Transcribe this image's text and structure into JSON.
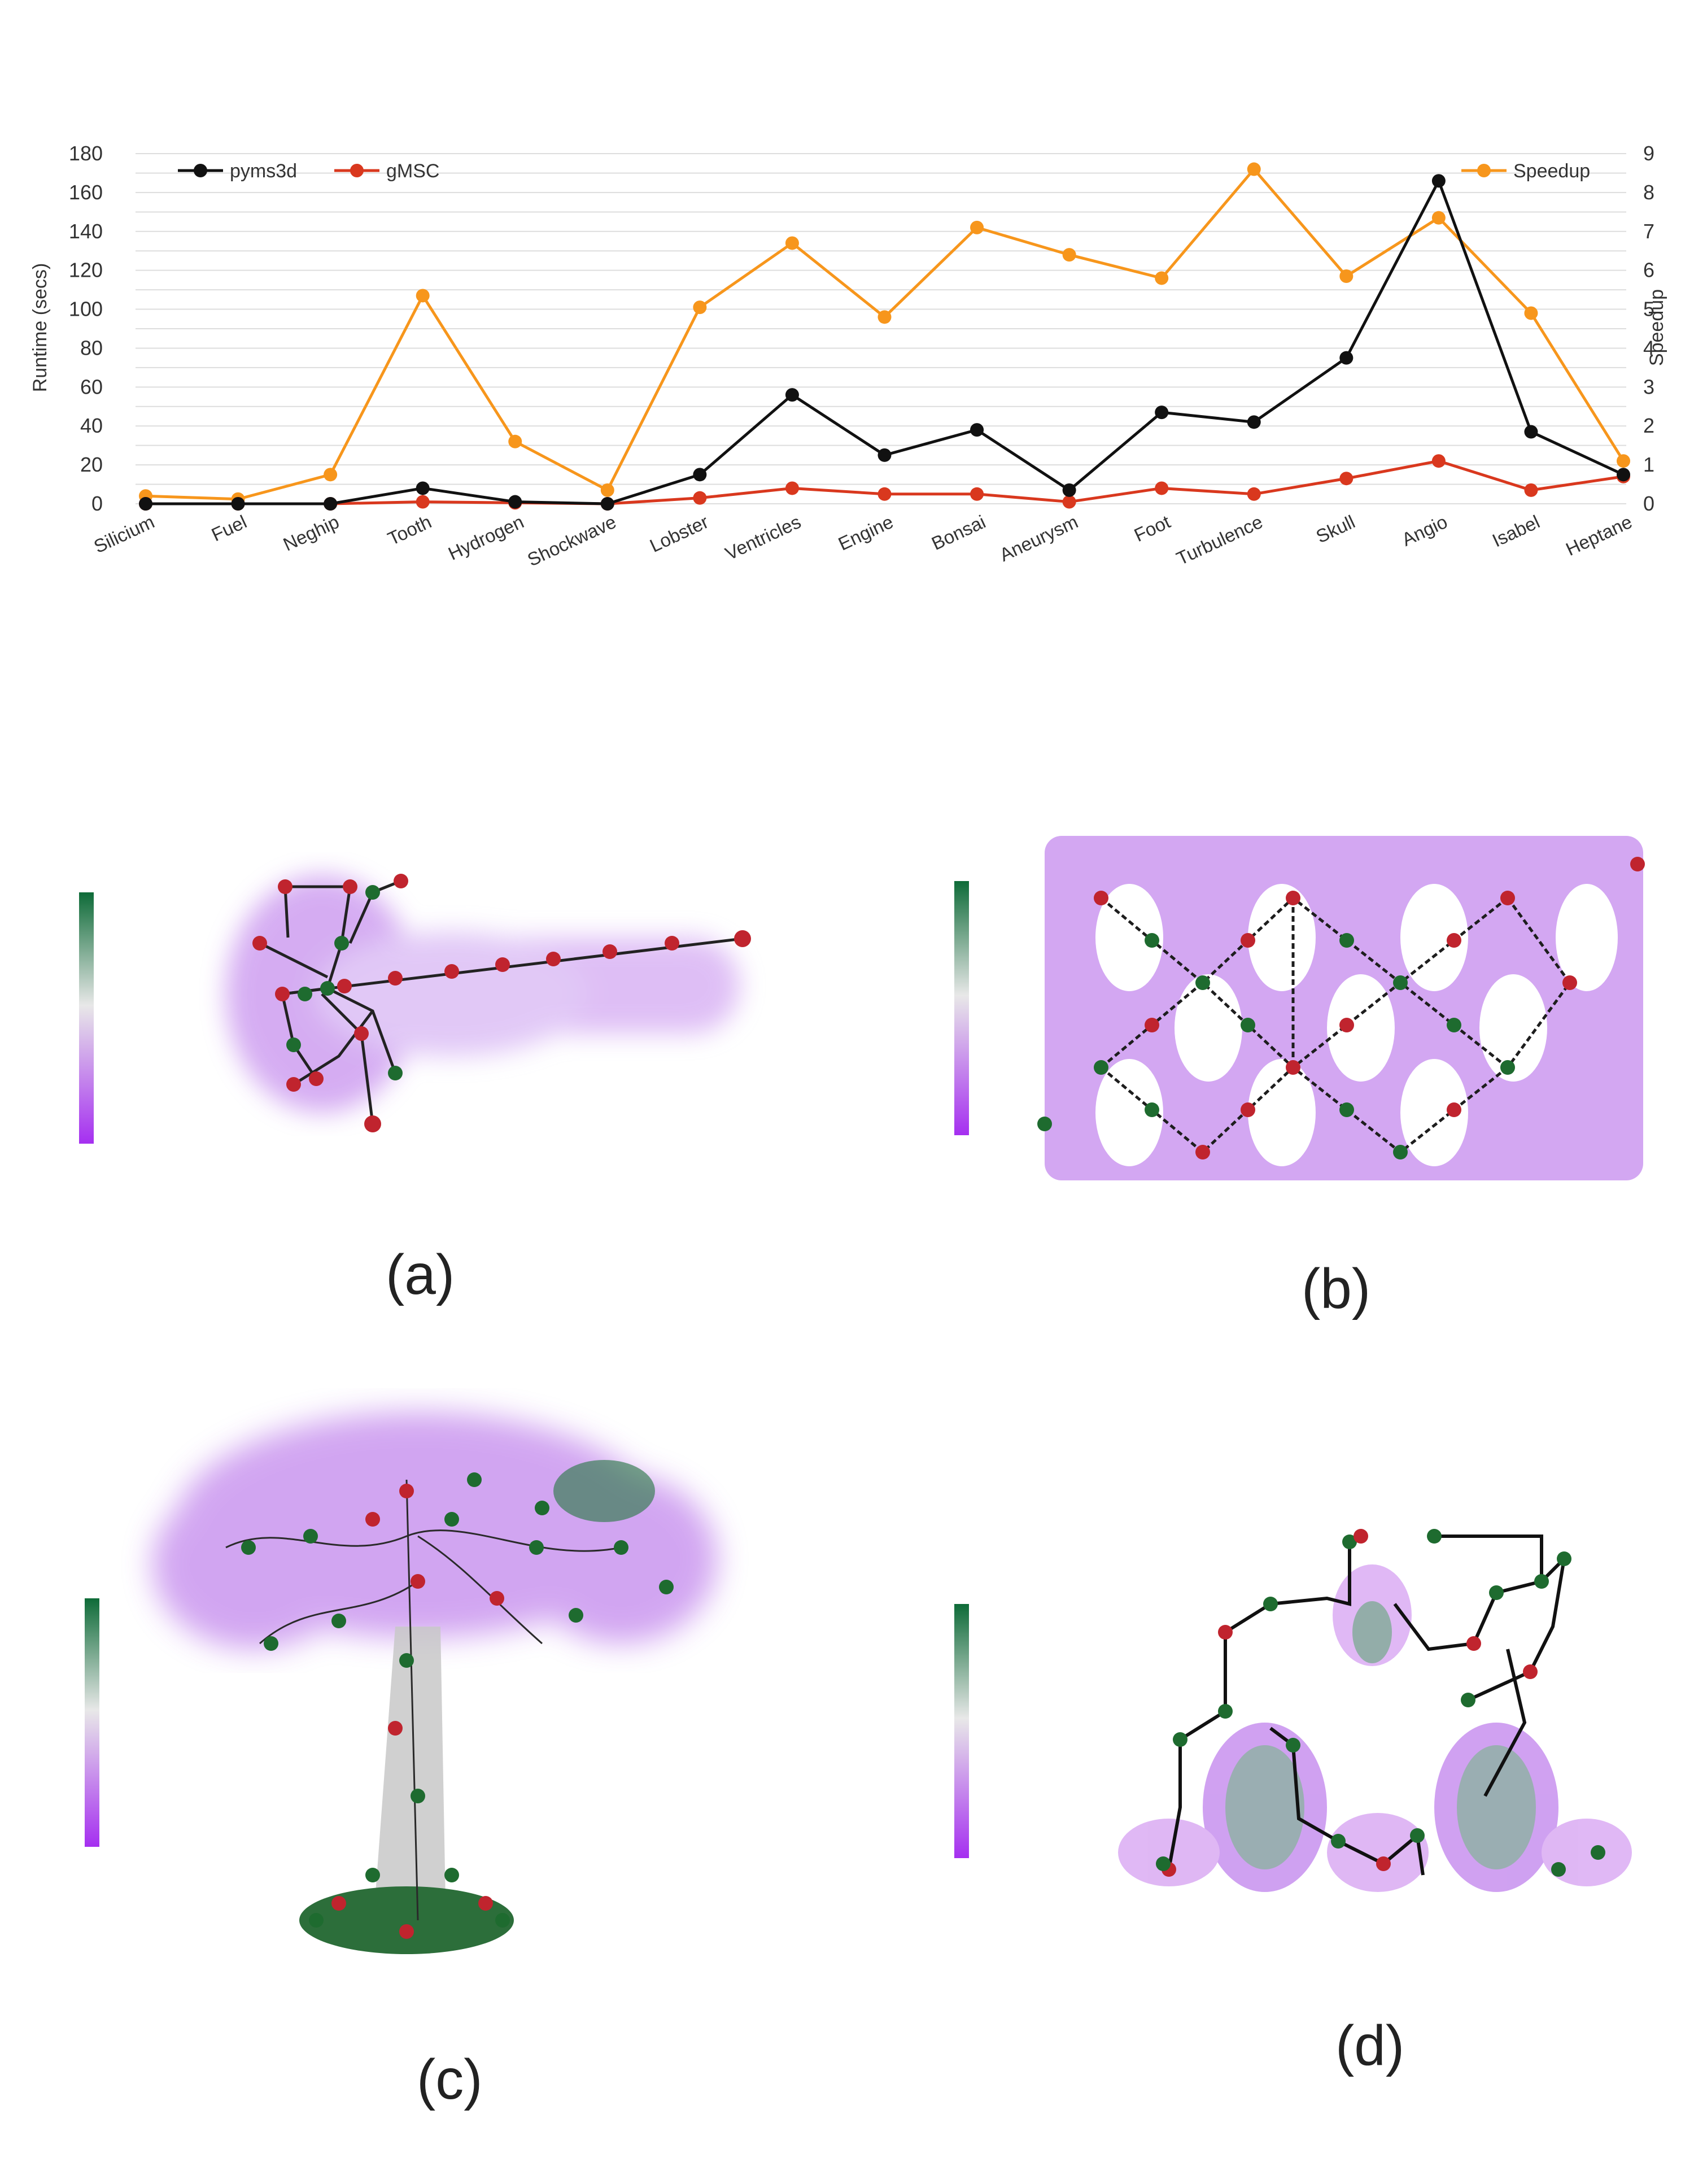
{
  "chart_data": {
    "type": "line",
    "categories": [
      "Silicium",
      "Fuel",
      "Neghip",
      "Tooth",
      "Hydrogen",
      "Shockwave",
      "Lobster",
      "Ventricles",
      "Engine",
      "Bonsai",
      "Aneurysm",
      "Foot",
      "Turbulence",
      "Skull",
      "Angio",
      "Isabel",
      "Heptane"
    ],
    "y_left": {
      "label": "Runtime (secs)",
      "ylim": [
        0,
        180
      ],
      "ticks": [
        0,
        20,
        40,
        60,
        80,
        100,
        120,
        140,
        160,
        180
      ]
    },
    "y_right": {
      "label": "Speedup",
      "ylim": [
        0,
        9
      ],
      "ticks": [
        0,
        1,
        2,
        3,
        4,
        5,
        6,
        7,
        8,
        9
      ]
    },
    "series": [
      {
        "name": "pyms3d",
        "axis": "left",
        "color": "#111111",
        "values": [
          0,
          0,
          0,
          8,
          1,
          0,
          15,
          56,
          25,
          38,
          7,
          47,
          42,
          75,
          166,
          37,
          15
        ]
      },
      {
        "name": "gMSC",
        "axis": "left",
        "color": "#d9381e",
        "values": [
          0,
          0,
          0,
          1,
          0.5,
          0,
          3,
          8,
          5,
          5,
          1,
          8,
          5,
          13,
          22,
          7,
          14
        ]
      },
      {
        "name": "Speedup",
        "axis": "right",
        "color": "#f7961c",
        "values": [
          0.2,
          0.12,
          0.75,
          5.35,
          1.6,
          0.35,
          5.05,
          6.7,
          4.8,
          7.1,
          6.4,
          5.8,
          8.6,
          5.85,
          7.35,
          4.9,
          1.1
        ]
      }
    ],
    "legend_left": "top-left",
    "legend_right": "top-right",
    "grid": true
  },
  "captions": {
    "a": "(a)",
    "b": "(b)",
    "c": "(c)",
    "d": "(d)"
  },
  "colors": {
    "green": "#0e6b38",
    "purple": "#a52ff0",
    "node_red": "#c0242e",
    "node_green": "#1e6b2f"
  }
}
